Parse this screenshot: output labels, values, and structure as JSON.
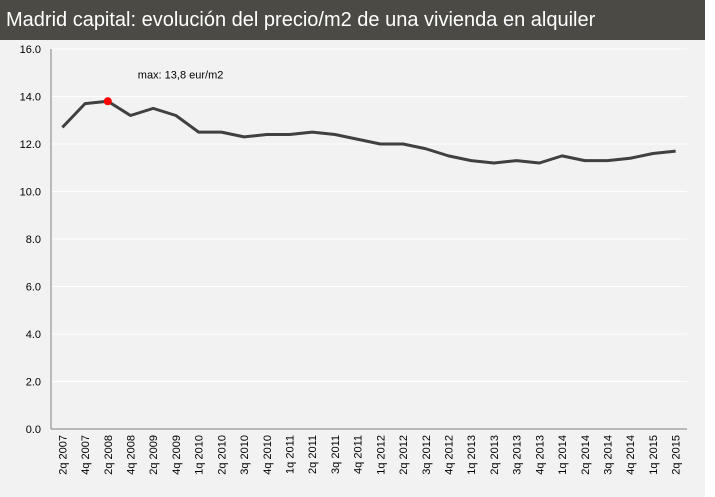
{
  "chart_data": {
    "type": "line",
    "title": "Madrid capital: evolución del precio/m2 de una vivienda en alquiler",
    "xlabel": "",
    "ylabel": "",
    "ylim": [
      0,
      16
    ],
    "yticks": [
      "0.0",
      "2.0",
      "4.0",
      "6.0",
      "8.0",
      "10.0",
      "12.0",
      "14.0",
      "16.0"
    ],
    "grid": true,
    "categories": [
      "2q 2007",
      "4q 2007",
      "2q 2008",
      "4q 2008",
      "2q 2009",
      "4q 2009",
      "1q 2010",
      "2q 2010",
      "3q 2010",
      "4q 2010",
      "1q 2011",
      "2q 2011",
      "3q 2011",
      "4q 2011",
      "1q 2012",
      "2q 2012",
      "3q 2012",
      "4q 2012",
      "1q 2013",
      "2q 2013",
      "3q 2013",
      "4q 2013",
      "1q 2014",
      "2q 2014",
      "3q 2014",
      "4q 2014",
      "1q 2015",
      "2q 2015"
    ],
    "values": [
      12.7,
      13.7,
      13.8,
      13.2,
      13.5,
      13.2,
      12.5,
      12.5,
      12.3,
      12.4,
      12.4,
      12.5,
      12.4,
      12.2,
      12.0,
      12.0,
      11.8,
      11.5,
      11.3,
      11.2,
      11.3,
      11.2,
      11.5,
      11.3,
      11.3,
      11.4,
      11.6,
      11.7
    ],
    "line_color": "#404040",
    "annotation": {
      "text": "max: 13,8 eur/m2",
      "index": 2,
      "marker_color": "#ff0000"
    }
  }
}
